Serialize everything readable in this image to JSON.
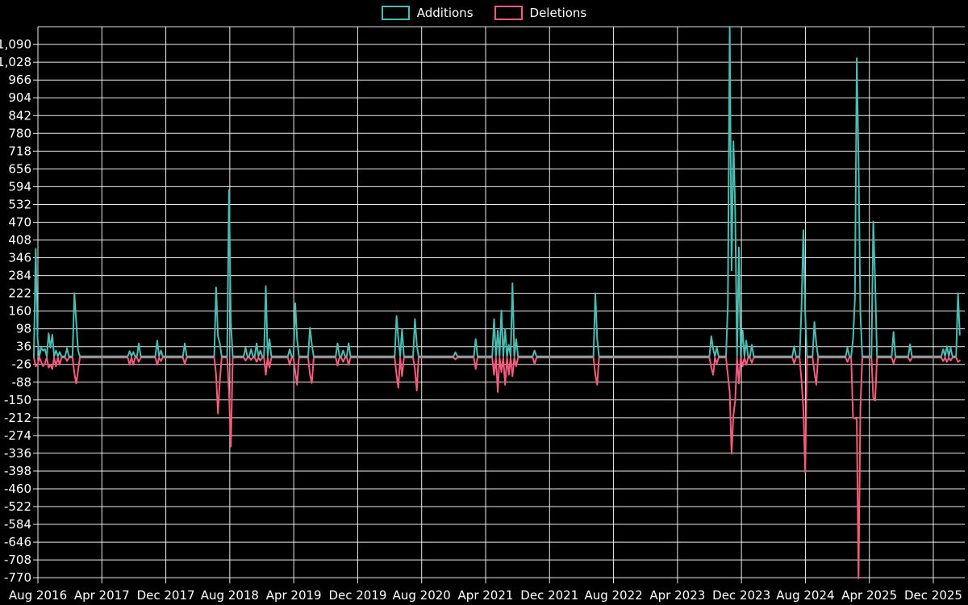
{
  "legend": {
    "items": [
      {
        "label": "Additions"
      },
      {
        "label": "Deletions"
      }
    ]
  },
  "chart_data": {
    "type": "line",
    "title": "",
    "xlabel": "",
    "ylabel": "",
    "background": "#000000",
    "grid_color": "#ffffff",
    "text_color": "#ffffff",
    "series": [
      {
        "name": "Additions",
        "color": "#4cbcb2"
      },
      {
        "name": "Deletions",
        "color": "#f65b7d"
      }
    ],
    "x_axis": {
      "tick_labels": [
        "Aug 2016",
        "Apr 2017",
        "Dec 2017",
        "Aug 2018",
        "Apr 2019",
        "Dec 2019",
        "Aug 2020",
        "Apr 2021",
        "Dec 2021",
        "Aug 2022",
        "Apr 2023",
        "Dec 2023",
        "Aug 2024",
        "Apr 2025",
        "Dec 2025"
      ],
      "months_per_tick": 8
    },
    "y_axis": {
      "min": -770,
      "max": 1152,
      "tick_step": 62,
      "tick_labels": [
        "1,090",
        "1,028",
        "966",
        "904",
        "842",
        "780",
        "718",
        "656",
        "594",
        "532",
        "470",
        "408",
        "346",
        "284",
        "222",
        "160",
        "98",
        "36",
        "-26",
        "-88",
        "-150",
        "-212",
        "-274",
        "-336",
        "-398",
        "-460",
        "-522",
        "-584",
        "-646",
        "-708",
        "-770"
      ]
    },
    "weeks_total": 504,
    "events_format": [
      "week_index",
      "additions",
      "deletions"
    ],
    "events": [
      [
        1,
        375,
        -30
      ],
      [
        2,
        60,
        -25
      ],
      [
        4,
        30,
        -15
      ],
      [
        5,
        20,
        -30
      ],
      [
        6,
        25,
        -20
      ],
      [
        8,
        80,
        -35
      ],
      [
        9,
        30,
        -25
      ],
      [
        10,
        75,
        -40
      ],
      [
        12,
        20,
        -30
      ],
      [
        14,
        15,
        -25
      ],
      [
        18,
        28,
        -12
      ],
      [
        22,
        220,
        -55
      ],
      [
        23,
        120,
        -90
      ],
      [
        24,
        20,
        -45
      ],
      [
        52,
        18,
        -25
      ],
      [
        54,
        15,
        -25
      ],
      [
        57,
        45,
        -15
      ],
      [
        67,
        55,
        -25
      ],
      [
        69,
        20,
        -12
      ],
      [
        82,
        45,
        -22
      ],
      [
        99,
        240,
        -60
      ],
      [
        100,
        70,
        -195
      ],
      [
        101,
        45,
        -80
      ],
      [
        106,
        580,
        -120
      ],
      [
        107,
        120,
        -310
      ],
      [
        115,
        30,
        -10
      ],
      [
        118,
        25,
        -8
      ],
      [
        121,
        45,
        -15
      ],
      [
        123,
        20,
        -10
      ],
      [
        126,
        245,
        -60
      ],
      [
        128,
        60,
        -35
      ],
      [
        139,
        25,
        -25
      ],
      [
        142,
        185,
        -50
      ],
      [
        143,
        60,
        -95
      ],
      [
        150,
        100,
        -60
      ],
      [
        151,
        40,
        -88
      ],
      [
        165,
        45,
        -28
      ],
      [
        168,
        20,
        -15
      ],
      [
        171,
        45,
        -25
      ],
      [
        197,
        140,
        -60
      ],
      [
        198,
        60,
        -105
      ],
      [
        200,
        95,
        -65
      ],
      [
        207,
        130,
        -40
      ],
      [
        208,
        40,
        -115
      ],
      [
        229,
        14,
        -6
      ],
      [
        240,
        60,
        -40
      ],
      [
        250,
        130,
        -60
      ],
      [
        252,
        90,
        -120
      ],
      [
        254,
        160,
        -50
      ],
      [
        256,
        95,
        -95
      ],
      [
        258,
        40,
        -60
      ],
      [
        260,
        255,
        -65
      ],
      [
        262,
        60,
        -30
      ],
      [
        272,
        20,
        -22
      ],
      [
        305,
        220,
        -60
      ],
      [
        306,
        60,
        -95
      ],
      [
        368,
        70,
        -35
      ],
      [
        369,
        25,
        -60
      ],
      [
        371,
        30,
        -20
      ],
      [
        377,
        180,
        -60
      ],
      [
        378,
        1150,
        -120
      ],
      [
        379,
        300,
        -335
      ],
      [
        380,
        750,
        -200
      ],
      [
        381,
        510,
        -150
      ],
      [
        383,
        380,
        -90
      ],
      [
        385,
        90,
        -30
      ],
      [
        387,
        55,
        -25
      ],
      [
        390,
        40,
        -18
      ],
      [
        413,
        35,
        -20
      ],
      [
        417,
        170,
        -80
      ],
      [
        418,
        440,
        -180
      ],
      [
        419,
        150,
        -400
      ],
      [
        424,
        120,
        -50
      ],
      [
        425,
        45,
        -95
      ],
      [
        442,
        30,
        -15
      ],
      [
        445,
        60,
        -210
      ],
      [
        446,
        200,
        -212
      ],
      [
        447,
        1040,
        -215
      ],
      [
        448,
        680,
        -770
      ],
      [
        449,
        150,
        -180
      ],
      [
        456,
        470,
        -140
      ],
      [
        457,
        260,
        -150
      ],
      [
        467,
        85,
        -20
      ],
      [
        476,
        42,
        -12
      ],
      [
        494,
        25,
        -12
      ],
      [
        496,
        35,
        -15
      ],
      [
        498,
        30,
        -10
      ],
      [
        502,
        220,
        -15
      ],
      [
        503,
        75,
        -10
      ]
    ]
  }
}
